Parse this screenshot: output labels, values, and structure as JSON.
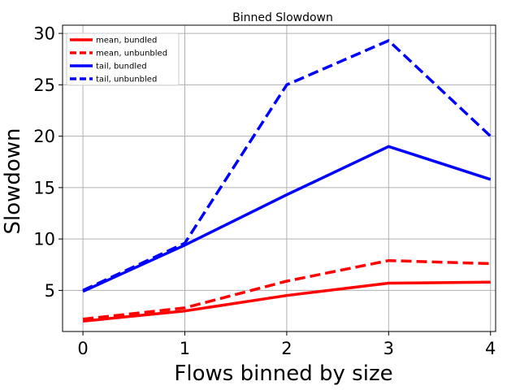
{
  "chart_data": {
    "type": "line",
    "title": "Binned Slowdown",
    "xlabel": "Flows binned by size",
    "ylabel": "Slowdown",
    "x": [
      0,
      1,
      2,
      3,
      4
    ],
    "xticks": [
      "0",
      "1",
      "2",
      "3",
      "4"
    ],
    "yticks": [
      "5",
      "10",
      "15",
      "20",
      "25",
      "30"
    ],
    "xlim": [
      -0.2,
      4.05
    ],
    "ylim": [
      1.0,
      30.8
    ],
    "grid": true,
    "legend_position": "top-left",
    "series": [
      {
        "name": "mean, bundled",
        "color": "#ff0000",
        "dash": "solid",
        "values": [
          2.0,
          3.0,
          4.5,
          5.7,
          5.8
        ]
      },
      {
        "name": "mean, unbunbled",
        "color": "#ff0000",
        "dash": "dashed",
        "values": [
          2.2,
          3.3,
          5.9,
          7.9,
          7.6
        ]
      },
      {
        "name": "tail, bundled",
        "color": "#0000ff",
        "dash": "solid",
        "values": [
          4.9,
          9.4,
          14.3,
          19.0,
          15.8
        ]
      },
      {
        "name": "tail, unbunbled",
        "color": "#0000ff",
        "dash": "dashed",
        "values": [
          5.0,
          9.6,
          25.0,
          29.3,
          20.0
        ]
      }
    ]
  }
}
